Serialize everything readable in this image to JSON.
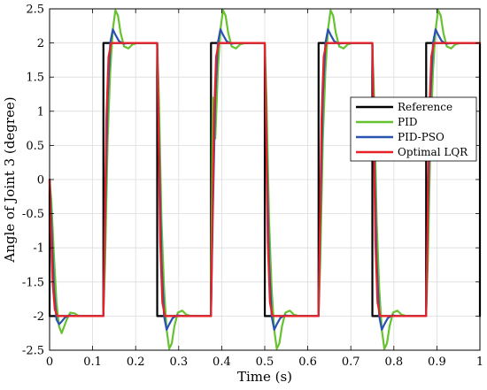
{
  "chart_data": {
    "type": "line",
    "title": "",
    "xlabel": "Time (s)",
    "ylabel": "Angle of Joint 3 (degree)",
    "xlim": [
      0,
      1
    ],
    "ylim": [
      -2.5,
      2.5
    ],
    "xticks": [
      0,
      0.1,
      0.2,
      0.3,
      0.4,
      0.5,
      0.6,
      0.7,
      0.8,
      0.9,
      1
    ],
    "xtick_labels": [
      "0",
      "0.1",
      "0.2",
      "0.3",
      "0.4",
      "0.5",
      "0.6",
      "0.7",
      "0.8",
      "0.9",
      "1"
    ],
    "yticks": [
      -2.5,
      -2,
      -1.5,
      -1,
      -0.5,
      0,
      0.5,
      1,
      1.5,
      2,
      2.5
    ],
    "ytick_labels": [
      "-2.5",
      "-2",
      "-1.5",
      "-1",
      "-0.5",
      "0",
      "0.5",
      "1",
      "1.5",
      "2",
      "2.5"
    ],
    "grid": true,
    "legend_position": "center-right",
    "series": [
      {
        "name": "Reference",
        "color": "#000000",
        "x": [
          0,
          0.0001,
          0.125,
          0.1251,
          0.25,
          0.2501,
          0.375,
          0.3751,
          0.5,
          0.5001,
          0.625,
          0.6251,
          0.75,
          0.7501,
          0.875,
          0.8751,
          1.0,
          1.0001
        ],
        "y": [
          0,
          -2,
          -2,
          2,
          2,
          -2,
          -2,
          2,
          2,
          -2,
          -2,
          2,
          2,
          -2,
          -2,
          2,
          2,
          -2
        ]
      },
      {
        "name": "PID",
        "color": "#66c22e",
        "x": [
          0,
          0.004,
          0.01,
          0.016,
          0.022,
          0.028,
          0.034,
          0.04,
          0.048,
          0.058,
          0.068,
          0.08,
          0.1,
          0.125,
          0.129,
          0.135,
          0.141,
          0.147,
          0.153,
          0.159,
          0.165,
          0.173,
          0.183,
          0.193,
          0.205,
          0.225,
          0.25,
          0.254,
          0.26,
          0.266,
          0.272,
          0.278,
          0.284,
          0.29,
          0.298,
          0.308,
          0.318,
          0.33,
          0.35,
          0.375,
          0.379,
          0.385,
          0.391,
          0.397,
          0.403,
          0.409,
          0.415,
          0.423,
          0.433,
          0.443,
          0.455,
          0.475,
          0.5,
          0.504,
          0.51,
          0.516,
          0.522,
          0.528,
          0.534,
          0.54,
          0.548,
          0.558,
          0.568,
          0.58,
          0.6,
          0.625,
          0.629,
          0.635,
          0.641,
          0.647,
          0.653,
          0.659,
          0.665,
          0.673,
          0.683,
          0.693,
          0.705,
          0.725,
          0.75,
          0.754,
          0.76,
          0.766,
          0.772,
          0.778,
          0.784,
          0.79,
          0.798,
          0.808,
          0.818,
          0.83,
          0.85,
          0.875,
          0.879,
          0.885,
          0.891,
          0.897,
          0.903,
          0.909,
          0.915,
          0.923,
          0.933,
          0.943,
          0.955,
          0.975,
          1.0
        ],
        "y": [
          0,
          -0.3,
          -1.1,
          -1.8,
          -2.15,
          -2.25,
          -2.15,
          -2.05,
          -1.95,
          -1.96,
          -2.0,
          -2.0,
          -2.0,
          -2.0,
          -1.2,
          0.6,
          1.6,
          2.2,
          2.48,
          2.4,
          2.15,
          1.95,
          1.92,
          1.98,
          2.0,
          2.0,
          2.0,
          1.2,
          -0.6,
          -1.6,
          -2.2,
          -2.48,
          -2.4,
          -2.15,
          -1.95,
          -1.92,
          -1.98,
          -2.0,
          -2.0,
          -2.0,
          1.2,
          0.6,
          1.6,
          2.2,
          2.48,
          2.4,
          2.15,
          1.95,
          1.92,
          1.98,
          2.0,
          2.0,
          2.0,
          1.2,
          -0.6,
          -1.6,
          -2.2,
          -2.48,
          -2.4,
          -2.15,
          -1.95,
          -1.92,
          -1.98,
          -2.0,
          -2.0,
          -2.0,
          -1.2,
          0.6,
          1.6,
          2.2,
          2.48,
          2.4,
          2.15,
          1.95,
          1.92,
          1.98,
          2.0,
          2.0,
          2.0,
          1.2,
          -0.6,
          -1.6,
          -2.2,
          -2.48,
          -2.4,
          -2.15,
          -1.95,
          -1.92,
          -1.98,
          -2.0,
          -2.0,
          -2.0,
          -1.2,
          0.6,
          1.6,
          2.2,
          2.48,
          2.4,
          2.15,
          1.95,
          1.92,
          1.98,
          2.0,
          2.0,
          2.0
        ]
      },
      {
        "name": "PID-PSO",
        "color": "#2a52b0",
        "x": [
          0,
          0.004,
          0.01,
          0.016,
          0.022,
          0.028,
          0.036,
          0.046,
          0.06,
          0.08,
          0.125,
          0.129,
          0.135,
          0.141,
          0.147,
          0.153,
          0.161,
          0.171,
          0.185,
          0.205,
          0.25,
          0.254,
          0.26,
          0.266,
          0.272,
          0.278,
          0.286,
          0.296,
          0.31,
          0.33,
          0.375,
          0.379,
          0.385,
          0.391,
          0.397,
          0.403,
          0.411,
          0.421,
          0.435,
          0.455,
          0.5,
          0.504,
          0.51,
          0.516,
          0.522,
          0.528,
          0.536,
          0.546,
          0.56,
          0.58,
          0.625,
          0.629,
          0.635,
          0.641,
          0.647,
          0.653,
          0.661,
          0.671,
          0.685,
          0.705,
          0.75,
          0.754,
          0.76,
          0.766,
          0.772,
          0.778,
          0.786,
          0.796,
          0.81,
          0.83,
          0.875,
          0.879,
          0.885,
          0.891,
          0.897,
          0.903,
          0.911,
          0.921,
          0.935,
          0.955,
          1.0
        ],
        "y": [
          0,
          -0.6,
          -1.6,
          -2.05,
          -2.12,
          -2.08,
          -2.02,
          -1.99,
          -2.0,
          -2.0,
          -2.0,
          -0.6,
          1.2,
          2.0,
          2.2,
          2.12,
          2.03,
          1.99,
          2.0,
          2.0,
          2.0,
          0.6,
          -1.2,
          -2.0,
          -2.2,
          -2.12,
          -2.03,
          -1.99,
          -2.0,
          -2.0,
          -2.0,
          -0.6,
          1.2,
          2.0,
          2.2,
          2.12,
          2.03,
          1.99,
          2.0,
          2.0,
          2.0,
          0.6,
          -1.2,
          -2.0,
          -2.2,
          -2.12,
          -2.03,
          -1.99,
          -2.0,
          -2.0,
          -2.0,
          -0.6,
          1.2,
          2.0,
          2.2,
          2.12,
          2.03,
          1.99,
          2.0,
          2.0,
          2.0,
          0.6,
          -1.2,
          -2.0,
          -2.2,
          -2.12,
          -2.03,
          -1.99,
          -2.0,
          -2.0,
          -2.0,
          -0.6,
          1.2,
          2.0,
          2.2,
          2.12,
          2.03,
          1.99,
          2.0,
          2.0,
          2.0
        ]
      },
      {
        "name": "Optimal LQR",
        "color": "#e8202a",
        "x": [
          0,
          0.003,
          0.007,
          0.012,
          0.018,
          0.026,
          0.04,
          0.125,
          0.128,
          0.132,
          0.137,
          0.143,
          0.151,
          0.165,
          0.25,
          0.253,
          0.257,
          0.262,
          0.268,
          0.276,
          0.29,
          0.375,
          0.378,
          0.382,
          0.387,
          0.393,
          0.401,
          0.415,
          0.5,
          0.503,
          0.507,
          0.512,
          0.518,
          0.526,
          0.54,
          0.625,
          0.628,
          0.632,
          0.637,
          0.643,
          0.651,
          0.665,
          0.75,
          0.753,
          0.757,
          0.762,
          0.768,
          0.776,
          0.79,
          0.875,
          0.878,
          0.882,
          0.887,
          0.893,
          0.901,
          0.915,
          1.0
        ],
        "y": [
          0,
          -0.7,
          -1.5,
          -1.9,
          -2.0,
          -2.0,
          -2.0,
          -2.0,
          -0.8,
          0.9,
          1.8,
          2.0,
          2.0,
          2.0,
          2.0,
          0.8,
          -0.9,
          -1.8,
          -2.0,
          -2.0,
          -2.0,
          -2.0,
          -0.8,
          0.9,
          1.8,
          2.0,
          2.0,
          2.0,
          2.0,
          0.8,
          -0.9,
          -1.8,
          -2.0,
          -2.0,
          -2.0,
          -2.0,
          -0.8,
          0.9,
          1.8,
          2.0,
          2.0,
          2.0,
          2.0,
          0.8,
          -0.9,
          -1.8,
          -2.0,
          -2.0,
          -2.0,
          -2.0,
          -0.8,
          0.9,
          1.8,
          2.0,
          2.0,
          2.0,
          2.0
        ]
      }
    ]
  }
}
